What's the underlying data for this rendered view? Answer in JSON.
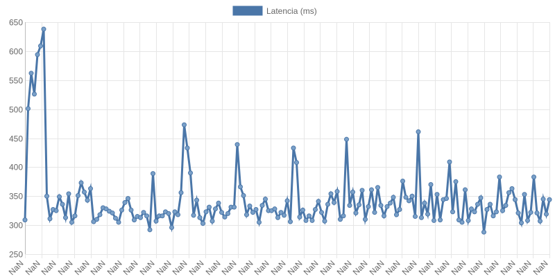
{
  "chart_data": {
    "type": "line",
    "title": "",
    "xlabel": "",
    "ylabel": "",
    "ylim": [
      250,
      650
    ],
    "y_ticks": [
      250,
      300,
      350,
      400,
      450,
      500,
      550,
      600,
      650
    ],
    "grid": true,
    "legend": {
      "position": "top-center",
      "entries": [
        "Latencia (ms)"
      ]
    },
    "x_tick_label_text": "NaN",
    "x_tick_count": 33,
    "colors": {
      "series": "#4a76a8",
      "grid": "#e6e6e6",
      "text": "#666666"
    },
    "series": [
      {
        "name": "Latencia (ms)",
        "values": [
          309,
          501,
          562,
          526,
          594,
          609,
          638,
          350,
          311,
          327,
          325,
          349,
          336,
          313,
          354,
          305,
          316,
          351,
          373,
          357,
          343,
          363,
          306,
          310,
          318,
          330,
          328,
          324,
          321,
          312,
          305,
          326,
          339,
          346,
          326,
          309,
          315,
          313,
          322,
          316,
          292,
          389,
          307,
          316,
          316,
          323,
          320,
          296,
          323,
          318,
          356,
          473,
          433,
          390,
          317,
          343,
          313,
          303,
          323,
          331,
          307,
          328,
          338,
          322,
          314,
          320,
          331,
          331,
          439,
          366,
          351,
          318,
          333,
          322,
          327,
          305,
          334,
          345,
          325,
          325,
          328,
          313,
          322,
          317,
          342,
          306,
          433,
          408,
          314,
          326,
          308,
          316,
          308,
          327,
          341,
          322,
          307,
          336,
          354,
          339,
          358,
          310,
          316,
          448,
          334,
          357,
          321,
          335,
          360,
          310,
          332,
          361,
          322,
          365,
          334,
          316,
          332,
          338,
          348,
          318,
          327,
          376,
          348,
          342,
          350,
          315,
          461,
          313,
          338,
          319,
          370,
          308,
          353,
          309,
          344,
          346,
          409,
          323,
          375,
          309,
          305,
          361,
          308,
          328,
          323,
          336,
          347,
          288,
          327,
          336,
          316,
          323,
          383,
          325,
          334,
          356,
          363,
          344,
          321,
          304,
          353,
          308,
          322,
          383,
          321,
          307,
          345,
          319,
          344
        ]
      }
    ]
  }
}
